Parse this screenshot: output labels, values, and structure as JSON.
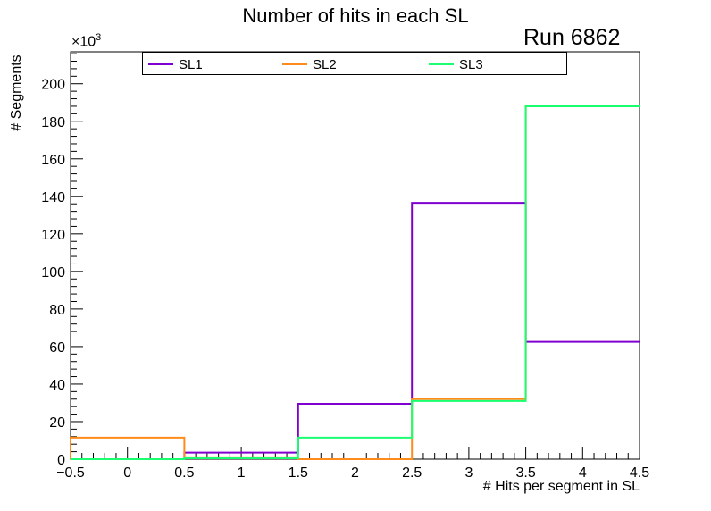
{
  "chart_data": {
    "type": "histogram",
    "title": "Number of hits in each SL",
    "annotation": "Run 6862",
    "xlabel": "# Hits per segment in SL",
    "ylabel": "# Segments",
    "y_multiplier_label": "×10",
    "y_multiplier_exponent": "3",
    "xlim": [
      -0.5,
      4.5
    ],
    "ylim": [
      0,
      217
    ],
    "x_ticks": [
      -0.5,
      0,
      0.5,
      1,
      1.5,
      2,
      2.5,
      3,
      3.5,
      4,
      4.5
    ],
    "x_tick_labels": [
      "−0.5",
      "0",
      "0.5",
      "1",
      "1.5",
      "2",
      "2.5",
      "3",
      "3.5",
      "4",
      "4.5"
    ],
    "y_ticks": [
      0,
      20,
      40,
      60,
      80,
      100,
      120,
      140,
      160,
      180,
      200
    ],
    "y_tick_labels": [
      "0",
      "20",
      "40",
      "60",
      "80",
      "100",
      "120",
      "140",
      "160",
      "180",
      "200"
    ],
    "bin_edges": [
      -0.5,
      0.5,
      1.5,
      2.5,
      3.5,
      4.5
    ],
    "legend_position": "top",
    "series": [
      {
        "name": "SL1",
        "color": "#8000d0",
        "values": [
          0,
          3.5,
          29.5,
          136.5,
          62.5
        ]
      },
      {
        "name": "SL2",
        "color": "#ff8c1a",
        "values": [
          11.5,
          1,
          0,
          32,
          188
        ]
      },
      {
        "name": "SL3",
        "color": "#1aff70",
        "values": [
          0,
          0.5,
          11.5,
          31,
          188
        ]
      }
    ]
  }
}
